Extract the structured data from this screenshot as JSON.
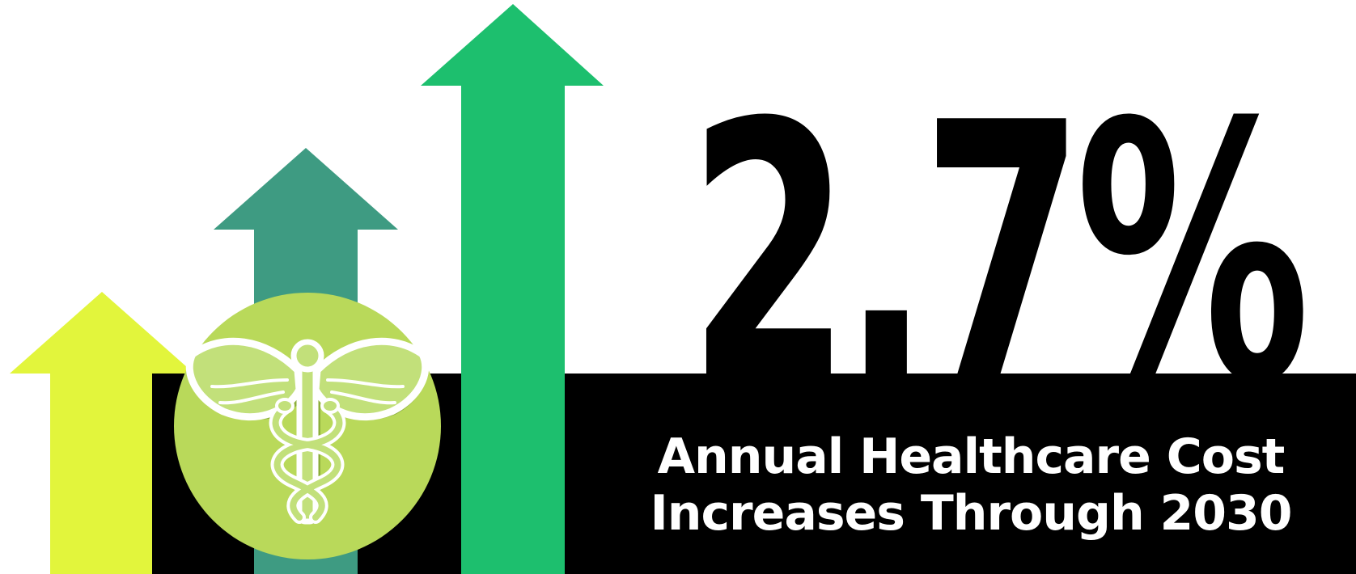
{
  "stat": {
    "value": "2.7%"
  },
  "caption": {
    "line1": "Annual Healthcare Cost",
    "line2": "Increases Through 2030"
  },
  "colors": {
    "arrow_small": "#e2f53c",
    "arrow_medium": "#3e9b82",
    "arrow_large": "#1dbf6e",
    "band": "#000000",
    "circle": "#b9d95a",
    "emblem_fill": "#c2e07a",
    "emblem_shadow": "#8cae3c",
    "emblem_outline": "#ffffff"
  },
  "icons": {
    "trend": "rising-arrows",
    "emblem": "caduceus-icon"
  }
}
